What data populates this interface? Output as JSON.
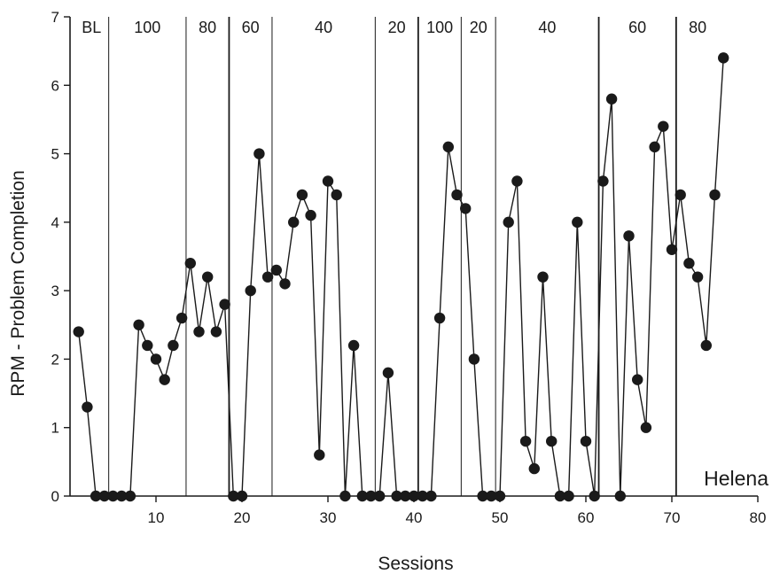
{
  "chart_data": {
    "type": "line",
    "title": "",
    "xlabel": "Sessions",
    "ylabel": "RPM - Problem Completion",
    "subject_label": "Helena",
    "xlim": [
      0,
      80
    ],
    "ylim": [
      0,
      7
    ],
    "x_ticks": [
      10,
      20,
      30,
      40,
      50,
      60,
      70,
      80
    ],
    "y_ticks": [
      0,
      1,
      2,
      3,
      4,
      5,
      6,
      7
    ],
    "grid": false,
    "marker": "filled-circle",
    "line_color": "#1a1a1a",
    "phase_lines": [
      4.5,
      13.5,
      18.5,
      23.5,
      35.5,
      40.5,
      45.5,
      49.5,
      61.5,
      70.5
    ],
    "phase_lines_heavy": [
      18.5,
      40.5,
      61.5,
      70.5
    ],
    "phases": [
      {
        "label": "BL",
        "x": 2.5
      },
      {
        "label": "100",
        "x": 9
      },
      {
        "label": "80",
        "x": 16
      },
      {
        "label": "60",
        "x": 21
      },
      {
        "label": "40",
        "x": 29.5
      },
      {
        "label": "20",
        "x": 38
      },
      {
        "label": "100",
        "x": 43
      },
      {
        "label": "20",
        "x": 47.5
      },
      {
        "label": "40",
        "x": 55.5
      },
      {
        "label": "60",
        "x": 66
      },
      {
        "label": "80",
        "x": 73
      }
    ],
    "series": [
      {
        "x": [
          1,
          2,
          3,
          4,
          5,
          6,
          7,
          8,
          9,
          10,
          11,
          12,
          13,
          14,
          15,
          16,
          17,
          18,
          19,
          20,
          21,
          22,
          23,
          24,
          25,
          26,
          27,
          28,
          29,
          30,
          31,
          32,
          33,
          34,
          35,
          36,
          37,
          38,
          39,
          40,
          41,
          42,
          43,
          44,
          45,
          46,
          47,
          48,
          49,
          50,
          51,
          52,
          53,
          54,
          55,
          56,
          57,
          58,
          59,
          60,
          61,
          62,
          63,
          64,
          65,
          66,
          67,
          68,
          69,
          70,
          71,
          72,
          73,
          74,
          75,
          76
        ],
        "y": [
          2.4,
          1.3,
          0,
          0,
          0,
          0,
          0,
          2.5,
          2.2,
          2.0,
          1.7,
          2.2,
          2.6,
          3.4,
          2.4,
          3.2,
          2.4,
          2.8,
          0,
          0,
          3.0,
          5.0,
          3.2,
          3.3,
          3.1,
          4.0,
          4.4,
          4.1,
          0.6,
          4.6,
          4.4,
          0,
          2.2,
          0,
          0,
          0,
          1.8,
          0,
          0,
          0,
          0,
          0,
          2.6,
          5.1,
          4.4,
          4.2,
          2.0,
          0,
          0,
          0,
          4.0,
          4.6,
          0.8,
          0.4,
          3.2,
          0.8,
          0,
          0,
          4.0,
          0.8,
          0,
          4.6,
          5.8,
          0,
          3.8,
          1.7,
          1.0,
          5.1,
          5.4,
          3.6,
          4.4,
          3.4,
          3.2,
          2.2,
          4.4,
          6.4
        ]
      }
    ]
  }
}
